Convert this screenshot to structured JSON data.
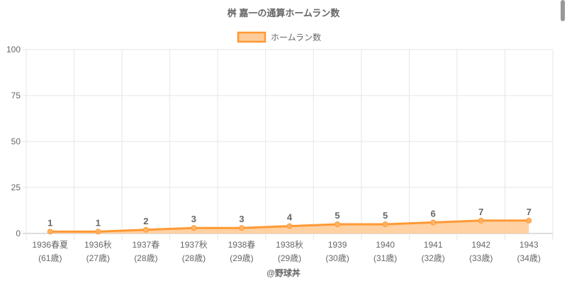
{
  "chart_data": {
    "type": "line",
    "title": "桝 嘉一の通算ホームラン数",
    "legend": {
      "label": "ホームラン数",
      "position": "top"
    },
    "categories": [
      [
        "1936春夏",
        "(61歳)"
      ],
      [
        "1936秋",
        "(27歳)"
      ],
      [
        "1937春",
        "(28歳)"
      ],
      [
        "1937秋",
        "(28歳)"
      ],
      [
        "1938春",
        "(29歳)"
      ],
      [
        "1938秋",
        "(29歳)"
      ],
      [
        "1939",
        "(30歳)"
      ],
      [
        "1940",
        "(31歳)"
      ],
      [
        "1941",
        "(32歳)"
      ],
      [
        "1942",
        "(33歳)"
      ],
      [
        "1943",
        "(34歳)"
      ]
    ],
    "values": [
      1,
      1,
      2,
      3,
      3,
      4,
      5,
      5,
      6,
      7,
      7
    ],
    "ylim": [
      0,
      100
    ],
    "yticks": [
      0,
      25,
      50,
      75,
      100
    ],
    "grid": true,
    "colors": {
      "line": "#ff9933",
      "fill": "#ffcc99"
    }
  },
  "credit": "@野球丼"
}
